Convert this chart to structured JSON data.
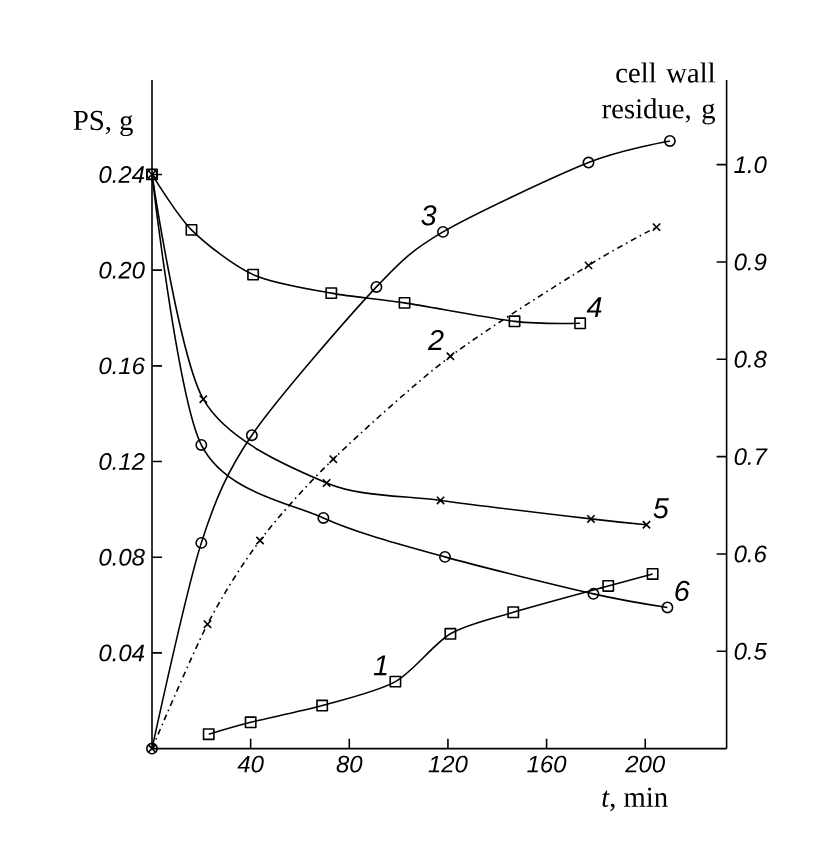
{
  "chart_data": {
    "type": "line",
    "xlabel": "*t*, min",
    "ylabel": "PS, g",
    "y2label": "cell wall residue, g",
    "xlim": [
      0,
      233
    ],
    "xticks": [
      40,
      80,
      120,
      160,
      200
    ],
    "ylim": [
      0,
      0.2795
    ],
    "yticks": [
      0.04,
      0.08,
      0.12,
      0.16,
      {
        "value": 0.2,
        "label": "0.20"
      },
      0.24
    ],
    "y2lim": [
      0.4,
      1.087
    ],
    "y2ticks": [
      0.5,
      0.6,
      0.7,
      0.8,
      0.9,
      {
        "value": 1,
        "label": "1.0"
      }
    ],
    "grid": false,
    "series": [
      {
        "name": "1",
        "color": "#000000",
        "marker": "square",
        "line_style": "solid",
        "x": [
          23,
          40,
          69,
          98.7,
          121,
          146.5,
          185,
          203
        ],
        "values": [
          0.006,
          0.011,
          0.018,
          0.028,
          0.048,
          0.057,
          0.068,
          0.073
        ]
      },
      {
        "name": "2",
        "color": "#000000",
        "marker": "cross",
        "line_style": "dashed",
        "x": [
          0,
          22.5,
          43.8,
          73.5,
          121,
          177,
          204.6
        ],
        "values": [
          0,
          0.052,
          0.087,
          0.121,
          0.164,
          0.202,
          0.218
        ]
      },
      {
        "name": "3",
        "color": "#000000",
        "marker": "circle",
        "line_style": "solid",
        "x": [
          0,
          20,
          40.5,
          91,
          118,
          177,
          210
        ],
        "values": [
          0,
          0.086,
          0.131,
          0.193,
          0.216,
          0.245,
          0.254
        ]
      },
      {
        "name": "4",
        "color": "#000000",
        "marker": "square",
        "line_style": "solid",
        "axis": "y2",
        "x": [
          0,
          16,
          41,
          72.7,
          102.4,
          147,
          173.6
        ],
        "values": [
          0.99,
          0.933,
          0.887,
          0.868,
          0.858,
          0.839,
          0.837
        ]
      },
      {
        "name": "5",
        "color": "#000000",
        "marker": "cross",
        "line_style": "solid",
        "axis": "y2",
        "x": [
          0,
          20.8,
          70.8,
          117,
          178,
          200.5
        ],
        "values": [
          0.99,
          0.759,
          0.673,
          0.655,
          0.636,
          0.63
        ]
      },
      {
        "name": "6",
        "color": "#000000",
        "marker": "circle",
        "line_style": "solid",
        "axis": "y2",
        "x": [
          0,
          20,
          69.5,
          118.8,
          179,
          209
        ],
        "values": [
          0.99,
          0.712,
          0.637,
          0.597,
          0.559,
          0.545
        ]
      }
    ]
  }
}
